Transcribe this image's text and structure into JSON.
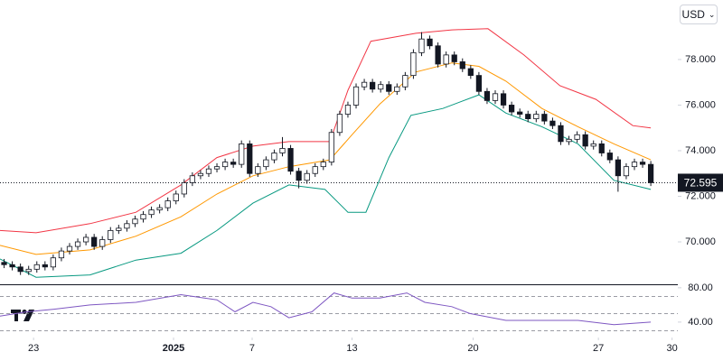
{
  "currency": "USD",
  "chart_data": [
    {
      "type": "candlestick",
      "xlim": [
        0,
        82.8
      ],
      "xticks": [
        {
          "value": 4.1,
          "label": "23"
        },
        {
          "value": 21.2,
          "label": "2025"
        },
        {
          "value": 30.8,
          "label": "7"
        },
        {
          "value": 43.0,
          "label": "13"
        },
        {
          "value": 57.8,
          "label": "20"
        },
        {
          "value": 73.1,
          "label": "27"
        },
        {
          "value": 82.1,
          "label": "30"
        }
      ],
      "ylim": [
        68.14,
        80.61
      ],
      "yticks": [
        {
          "value": 70,
          "label": "70.000"
        },
        {
          "value": 72,
          "label": "72.000"
        },
        {
          "value": 74,
          "label": "74.000"
        },
        {
          "value": 76,
          "label": "76.000"
        },
        {
          "value": 78,
          "label": "78.000"
        }
      ],
      "up_color": "#ffffff",
      "down_color": "#131722",
      "edge_color": "#131722",
      "open": [
        69.1,
        69.0,
        68.9,
        68.7,
        68.8,
        69.0,
        68.9,
        69.3,
        69.6,
        69.8,
        70.0,
        70.2,
        69.8,
        70.1,
        70.5,
        70.6,
        70.8,
        71.0,
        71.2,
        71.4,
        71.5,
        71.8,
        72.1,
        72.6,
        72.9,
        73.0,
        73.2,
        73.3,
        73.5,
        73.4,
        74.3,
        73.0,
        73.3,
        73.6,
        73.9,
        74.1,
        73.1,
        72.7,
        73.0,
        73.3,
        73.5,
        74.8,
        75.6,
        76.0,
        76.8,
        77.0,
        76.7,
        76.9,
        76.6,
        76.8,
        77.3,
        78.3,
        78.9,
        78.6,
        77.8,
        78.2,
        77.9,
        77.6,
        77.3,
        76.6,
        76.2,
        76.5,
        76.0,
        75.7,
        75.6,
        75.4,
        75.6,
        75.3,
        75.1,
        74.4,
        74.5,
        74.7,
        74.2,
        74.3,
        73.9,
        73.6,
        72.9,
        73.3,
        73.5,
        73.4
      ],
      "high": [
        69.25,
        69.15,
        69.05,
        68.95,
        69.15,
        69.15,
        69.45,
        69.75,
        69.95,
        70.15,
        70.35,
        70.35,
        70.25,
        70.65,
        70.75,
        70.95,
        71.15,
        71.35,
        71.55,
        71.65,
        71.95,
        72.25,
        72.75,
        73.05,
        73.15,
        73.35,
        73.45,
        73.65,
        73.65,
        74.45,
        74.45,
        73.45,
        73.75,
        74.05,
        74.6,
        74.25,
        73.25,
        73.15,
        73.45,
        73.65,
        74.95,
        75.75,
        76.15,
        76.95,
        77.15,
        77.15,
        77.05,
        77.05,
        76.95,
        77.45,
        78.45,
        79.2,
        79.05,
        78.75,
        78.35,
        78.35,
        78.05,
        77.75,
        77.45,
        76.75,
        76.65,
        76.65,
        76.15,
        75.85,
        75.75,
        75.75,
        75.75,
        75.45,
        75.25,
        74.65,
        74.85,
        74.85,
        74.45,
        74.45,
        74.05,
        73.75,
        73.45,
        73.65,
        73.65,
        73.55
      ],
      "low": [
        68.85,
        68.75,
        68.55,
        68.55,
        68.65,
        68.75,
        68.75,
        69.15,
        69.45,
        69.65,
        69.85,
        69.65,
        69.65,
        69.95,
        70.35,
        70.45,
        70.65,
        70.85,
        71.05,
        71.25,
        71.35,
        71.65,
        71.95,
        72.45,
        72.75,
        72.85,
        73.05,
        73.15,
        73.25,
        73.25,
        72.85,
        72.85,
        73.15,
        73.45,
        73.75,
        72.95,
        72.35,
        72.55,
        72.85,
        73.15,
        73.35,
        74.65,
        75.45,
        75.85,
        76.65,
        76.55,
        76.55,
        76.45,
        76.45,
        76.65,
        77.15,
        78.15,
        78.45,
        77.65,
        77.65,
        77.75,
        77.45,
        77.15,
        76.45,
        76.05,
        76.05,
        75.85,
        75.55,
        75.45,
        75.25,
        75.25,
        75.15,
        74.95,
        74.25,
        74.25,
        74.35,
        74.05,
        74.05,
        73.75,
        73.45,
        72.2,
        72.75,
        73.15,
        73.25,
        72.45
      ],
      "close": [
        69.0,
        68.9,
        68.7,
        68.8,
        69.0,
        68.9,
        69.3,
        69.6,
        69.8,
        70.0,
        70.2,
        69.8,
        70.1,
        70.5,
        70.6,
        70.8,
        71.0,
        71.2,
        71.4,
        71.5,
        71.8,
        72.1,
        72.6,
        72.9,
        73.0,
        73.2,
        73.3,
        73.5,
        73.4,
        74.3,
        73.0,
        73.3,
        73.6,
        73.9,
        74.1,
        73.1,
        72.7,
        73.0,
        73.3,
        73.5,
        74.8,
        75.6,
        76.0,
        76.8,
        77.0,
        76.7,
        76.9,
        76.6,
        76.8,
        77.3,
        78.3,
        78.9,
        78.6,
        77.8,
        78.2,
        77.9,
        77.6,
        77.3,
        76.6,
        76.2,
        76.5,
        76.0,
        75.7,
        75.6,
        75.4,
        75.6,
        75.3,
        75.1,
        74.4,
        74.5,
        74.7,
        74.2,
        74.3,
        73.9,
        73.6,
        72.9,
        73.3,
        73.5,
        73.4,
        72.595
      ],
      "series": [
        {
          "color": "#f23645",
          "x": [
            0,
            4.4,
            11,
            16.6,
            22.1,
            26.5,
            30.9,
            35.3,
            40.3,
            42.5,
            45.3,
            50.8,
            55.2,
            59.6,
            64,
            68.4,
            72.8,
            77.3,
            79.5
          ],
          "values": [
            70.5,
            70.4,
            70.8,
            71.3,
            72.5,
            73.7,
            74.2,
            74.4,
            74.4,
            76.65,
            78.8,
            79.15,
            79.3,
            79.35,
            78.2,
            76.85,
            76.25,
            75.1,
            75.0
          ]
        },
        {
          "color": "#ff9800",
          "x": [
            0,
            4.4,
            11,
            16.6,
            22.1,
            26.5,
            30.9,
            35.3,
            40.3,
            43,
            46.4,
            50.8,
            55.2,
            58.5,
            61.8,
            66.2,
            70.6,
            75,
            79.5
          ],
          "values": [
            69.85,
            69.45,
            69.65,
            70.25,
            71.1,
            72.1,
            72.9,
            73.3,
            73.6,
            74.7,
            76.05,
            77.45,
            77.85,
            77.7,
            77.05,
            75.85,
            75.05,
            74.3,
            73.6
          ]
        },
        {
          "color": "#089981",
          "x": [
            0,
            4.4,
            11,
            16.6,
            22.1,
            26.5,
            30.9,
            35.3,
            39.7,
            42.5,
            44.7,
            47.5,
            50.2,
            54.1,
            58.5,
            61.8,
            66.2,
            70.6,
            75,
            79.5
          ],
          "values": [
            69.25,
            68.45,
            68.55,
            69.2,
            69.5,
            70.5,
            71.7,
            72.5,
            72.3,
            71.3,
            71.3,
            73.7,
            75.55,
            75.85,
            76.45,
            75.65,
            75.05,
            74.3,
            72.7,
            72.3
          ]
        }
      ]
    },
    {
      "type": "line",
      "xlim": [
        0,
        82.8
      ],
      "ylim": [
        22,
        83
      ],
      "yticks": [
        {
          "value": 80,
          "label": "80.00"
        },
        {
          "value": 40,
          "label": "40.00"
        }
      ],
      "levels": [
        70,
        50,
        30
      ],
      "color": "#7e57c2",
      "x": [
        0,
        3.3,
        6.6,
        11,
        16.6,
        22.1,
        26.5,
        28.7,
        30.9,
        33.1,
        35.3,
        38.1,
        40.8,
        43,
        46.4,
        49.7,
        51.9,
        55.2,
        57.4,
        61.8,
        66.2,
        70.6,
        75,
        79.5
      ],
      "values": [
        47,
        52,
        55,
        60,
        63,
        72,
        66,
        52,
        63,
        58,
        45,
        52,
        74,
        68,
        68,
        74,
        63,
        58,
        50,
        42,
        42,
        42,
        37,
        40
      ]
    }
  ]
}
